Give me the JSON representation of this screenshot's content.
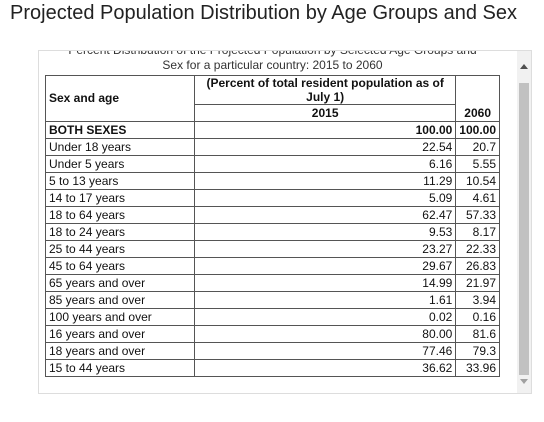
{
  "title": "Projected Population Distribution by Age Groups and Sex",
  "caption": [
    "Percent Distribution of the Projected Population by Selected Age Groups and",
    "Sex for a particular country: 2015 to 2060"
  ],
  "table": {
    "header": {
      "label": "Sex and age",
      "group": "(Percent of total resident population as of July 1)",
      "years": [
        "2015",
        "2060"
      ]
    },
    "rows": [
      [
        "BOTH SEXES",
        "100.00",
        "100.00"
      ],
      [
        "Under 18 years",
        "22.54",
        "20.7"
      ],
      [
        "Under 5 years",
        "6.16",
        "5.55"
      ],
      [
        "5 to 13 years",
        "11.29",
        "10.54"
      ],
      [
        "14 to 17 years",
        "5.09",
        "4.61"
      ],
      [
        "18 to 64 years",
        "62.47",
        "57.33"
      ],
      [
        "18 to 24 years",
        "9.53",
        "8.17"
      ],
      [
        "25 to 44 years",
        "23.27",
        "22.33"
      ],
      [
        "45 to 64 years",
        "29.67",
        "26.83"
      ],
      [
        "65 years and over",
        "14.99",
        "21.97"
      ],
      [
        "85 years and over",
        "1.61",
        "3.94"
      ],
      [
        "100 years and over",
        "0.02",
        "0.16"
      ],
      [
        "16 years and over",
        "80.00",
        "81.6"
      ],
      [
        "18 years and over",
        "77.46",
        "79.3"
      ],
      [
        "15 to 44 years",
        "36.62",
        "33.96"
      ]
    ]
  }
}
